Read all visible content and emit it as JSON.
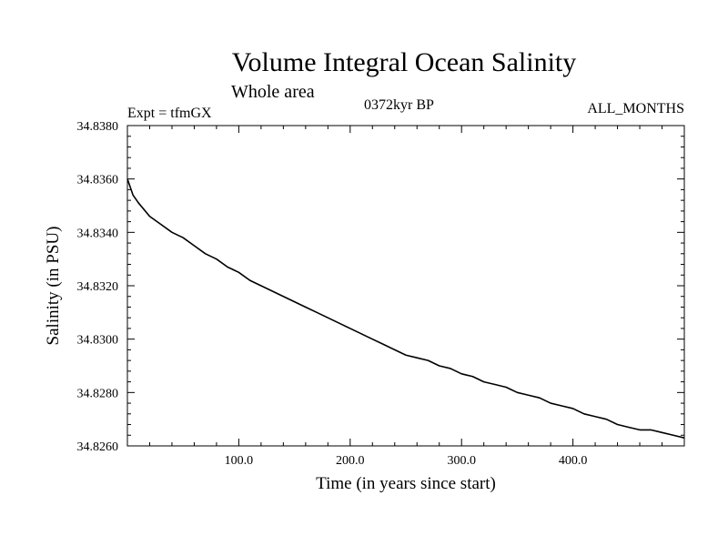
{
  "header": {
    "title": "Volume Integral Ocean Salinity",
    "subtitle": "Whole area",
    "experiment": "Expt = tfmGX",
    "period": "0372kyr BP",
    "months": "ALL_MONTHS"
  },
  "chart_data": {
    "type": "line",
    "title": "Volume Integral Ocean Salinity",
    "subtitle": "Whole area",
    "xlabel": "Time (in years since start)",
    "ylabel": "Salinity (in PSU)",
    "xlim": [
      0,
      500
    ],
    "ylim": [
      34.826,
      34.838
    ],
    "xticks": [
      100,
      200,
      300,
      400
    ],
    "xtick_labels": [
      "100.0",
      "200.0",
      "300.0",
      "400.0"
    ],
    "yticks": [
      34.826,
      34.828,
      34.83,
      34.832,
      34.834,
      34.836,
      34.838
    ],
    "ytick_labels": [
      "34.8260",
      "34.8280",
      "34.8300",
      "34.8320",
      "34.8340",
      "34.8360",
      "34.8380"
    ],
    "grid": false,
    "series": [
      {
        "color": "#000000",
        "x": [
          0,
          5,
          10,
          20,
          30,
          40,
          50,
          60,
          70,
          80,
          90,
          100,
          110,
          120,
          130,
          140,
          150,
          160,
          170,
          180,
          190,
          200,
          210,
          220,
          230,
          240,
          250,
          260,
          270,
          280,
          290,
          300,
          310,
          320,
          330,
          340,
          350,
          360,
          370,
          380,
          390,
          400,
          410,
          420,
          430,
          440,
          450,
          460,
          470,
          480,
          490,
          500
        ],
        "y": [
          34.836,
          34.8354,
          34.8351,
          34.8346,
          34.8343,
          34.834,
          34.8338,
          34.8335,
          34.8332,
          34.833,
          34.8327,
          34.8325,
          34.8322,
          34.832,
          34.8318,
          34.8316,
          34.8314,
          34.8312,
          34.831,
          34.8308,
          34.8306,
          34.8304,
          34.8302,
          34.83,
          34.8298,
          34.8296,
          34.8294,
          34.8293,
          34.8292,
          34.829,
          34.8289,
          34.8287,
          34.8286,
          34.8284,
          34.8283,
          34.8282,
          34.828,
          34.8279,
          34.8278,
          34.8276,
          34.8275,
          34.8274,
          34.8272,
          34.8271,
          34.827,
          34.8268,
          34.8267,
          34.8266,
          34.8266,
          34.8265,
          34.8264,
          34.8263
        ]
      }
    ]
  }
}
